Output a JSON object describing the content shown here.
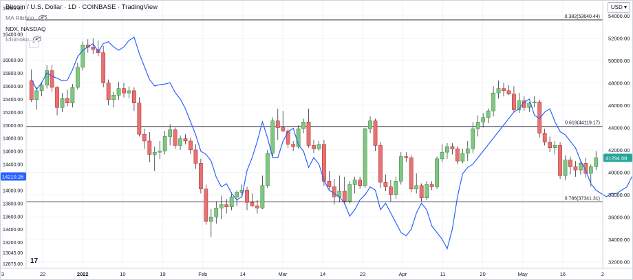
{
  "legend": {
    "title": "Bitcoin / U.S. Dollar · 1D · COINBASE · TradingView",
    "items": [
      "MA Ribbon",
      "NDX, NASDAQ",
      "Ichimoku"
    ]
  },
  "currency": "USD",
  "tv_logo": "17",
  "chart_data": {
    "type": "candlestick+line",
    "x_tick_labels": [
      "3",
      "22",
      "2022",
      "10",
      "19",
      "Feb",
      "14",
      "Mar",
      "14",
      "23",
      "Apr",
      "11",
      "20",
      "May",
      "16",
      "2"
    ],
    "right_axis": {
      "label": "USD",
      "ticks": [
        32000,
        34000,
        36000,
        38000,
        40000,
        42000,
        44000,
        46000,
        48000,
        50000,
        52000,
        54000
      ],
      "range": [
        31400,
        55300
      ]
    },
    "left_axis": {
      "label": "NDX",
      "ticks": [
        12875,
        13045,
        13200,
        13400,
        13600,
        13800,
        14000,
        14200,
        14400,
        14600,
        14800,
        15000,
        15200,
        15400,
        15600,
        15800,
        16000,
        16400,
        16800
      ],
      "range": [
        12800,
        16900
      ]
    },
    "fib_levels": [
      {
        "label": "0.382(53640.44)",
        "value": 53640.44
      },
      {
        "label": "0.618(44119.17)",
        "value": 44119.17
      },
      {
        "label": "0.786(37341.31)",
        "value": 37341.31
      }
    ],
    "last_price": {
      "value": "41294.68",
      "color": "#26a69a"
    },
    "ndx_last": {
      "value": "14210.26",
      "color": "#2962ff"
    },
    "colors": {
      "up": "#26a69a",
      "up_fill": "#81c784",
      "down": "#ef5350",
      "down_fill": "#e57373",
      "ndx": "#2962ff",
      "fib": "#131722",
      "grid": "#f0f3fa"
    },
    "btc_candles": [
      {
        "o": 48200,
        "h": 49200,
        "l": 46300,
        "c": 46500
      },
      {
        "o": 46500,
        "h": 47600,
        "l": 45600,
        "c": 47300
      },
      {
        "o": 47300,
        "h": 48100,
        "l": 46800,
        "c": 47800
      },
      {
        "o": 47800,
        "h": 49600,
        "l": 47500,
        "c": 49100
      },
      {
        "o": 49100,
        "h": 49600,
        "l": 47200,
        "c": 47600
      },
      {
        "o": 47600,
        "h": 47700,
        "l": 45100,
        "c": 45800
      },
      {
        "o": 45800,
        "h": 47100,
        "l": 45400,
        "c": 46600
      },
      {
        "o": 46600,
        "h": 47400,
        "l": 45900,
        "c": 46200
      },
      {
        "o": 46200,
        "h": 47900,
        "l": 45800,
        "c": 47600
      },
      {
        "o": 47600,
        "h": 49800,
        "l": 47400,
        "c": 49400
      },
      {
        "o": 49400,
        "h": 51700,
        "l": 49100,
        "c": 51400
      },
      {
        "o": 51400,
        "h": 51900,
        "l": 50700,
        "c": 51200
      },
      {
        "o": 51200,
        "h": 52000,
        "l": 50600,
        "c": 51000
      },
      {
        "o": 51000,
        "h": 51800,
        "l": 50400,
        "c": 50700
      },
      {
        "o": 50700,
        "h": 51300,
        "l": 47600,
        "c": 48000
      },
      {
        "o": 48000,
        "h": 48300,
        "l": 46000,
        "c": 46500
      },
      {
        "o": 46500,
        "h": 47200,
        "l": 45800,
        "c": 46900
      },
      {
        "o": 46900,
        "h": 48100,
        "l": 46500,
        "c": 47500
      },
      {
        "o": 47500,
        "h": 48000,
        "l": 46700,
        "c": 47100
      },
      {
        "o": 47100,
        "h": 47700,
        "l": 46600,
        "c": 47300
      },
      {
        "o": 47300,
        "h": 47600,
        "l": 45500,
        "c": 46200
      },
      {
        "o": 46200,
        "h": 46700,
        "l": 43200,
        "c": 43400
      },
      {
        "o": 43400,
        "h": 43900,
        "l": 42100,
        "c": 42800
      },
      {
        "o": 42800,
        "h": 43600,
        "l": 40900,
        "c": 41600
      },
      {
        "o": 41600,
        "h": 42300,
        "l": 40100,
        "c": 41800
      },
      {
        "o": 41800,
        "h": 42800,
        "l": 41200,
        "c": 41900
      },
      {
        "o": 41900,
        "h": 43700,
        "l": 41600,
        "c": 43200
      },
      {
        "o": 43200,
        "h": 44300,
        "l": 42400,
        "c": 43800
      },
      {
        "o": 43800,
        "h": 44000,
        "l": 42100,
        "c": 42400
      },
      {
        "o": 42400,
        "h": 43300,
        "l": 42000,
        "c": 43000
      },
      {
        "o": 43000,
        "h": 43400,
        "l": 42500,
        "c": 42800
      },
      {
        "o": 42800,
        "h": 43100,
        "l": 41600,
        "c": 42000
      },
      {
        "o": 42000,
        "h": 42500,
        "l": 40300,
        "c": 40800
      },
      {
        "o": 40800,
        "h": 41200,
        "l": 38100,
        "c": 38500
      },
      {
        "o": 38500,
        "h": 38900,
        "l": 35300,
        "c": 35600
      },
      {
        "o": 35600,
        "h": 36700,
        "l": 34200,
        "c": 36000
      },
      {
        "o": 36000,
        "h": 37400,
        "l": 35400,
        "c": 36800
      },
      {
        "o": 36800,
        "h": 37900,
        "l": 35800,
        "c": 37100
      },
      {
        "o": 37100,
        "h": 37600,
        "l": 36300,
        "c": 36900
      },
      {
        "o": 36900,
        "h": 38200,
        "l": 36600,
        "c": 37800
      },
      {
        "o": 37800,
        "h": 38400,
        "l": 37000,
        "c": 38200
      },
      {
        "o": 38200,
        "h": 38900,
        "l": 37800,
        "c": 38400
      },
      {
        "o": 38400,
        "h": 38700,
        "l": 36600,
        "c": 37300
      },
      {
        "o": 37300,
        "h": 38100,
        "l": 36900,
        "c": 37000
      },
      {
        "o": 37000,
        "h": 37500,
        "l": 36300,
        "c": 36800
      },
      {
        "o": 36800,
        "h": 39700,
        "l": 36700,
        "c": 38800
      },
      {
        "o": 38800,
        "h": 42000,
        "l": 38600,
        "c": 41700
      },
      {
        "o": 41700,
        "h": 44900,
        "l": 41400,
        "c": 44600
      },
      {
        "o": 44600,
        "h": 45700,
        "l": 42900,
        "c": 44000
      },
      {
        "o": 44000,
        "h": 45500,
        "l": 43600,
        "c": 43700
      },
      {
        "o": 43700,
        "h": 43900,
        "l": 42200,
        "c": 42500
      },
      {
        "o": 42500,
        "h": 42800,
        "l": 41900,
        "c": 42300
      },
      {
        "o": 42300,
        "h": 44200,
        "l": 42100,
        "c": 43900
      },
      {
        "o": 43900,
        "h": 44800,
        "l": 43500,
        "c": 44500
      },
      {
        "o": 44500,
        "h": 45700,
        "l": 42200,
        "c": 42400
      },
      {
        "o": 42400,
        "h": 42900,
        "l": 41700,
        "c": 42100
      },
      {
        "o": 42100,
        "h": 42800,
        "l": 41900,
        "c": 42500
      },
      {
        "o": 42500,
        "h": 42900,
        "l": 38800,
        "c": 39200
      },
      {
        "o": 39200,
        "h": 40100,
        "l": 38400,
        "c": 38700
      },
      {
        "o": 38700,
        "h": 39400,
        "l": 37100,
        "c": 37800
      },
      {
        "o": 37800,
        "h": 39700,
        "l": 37300,
        "c": 38300
      },
      {
        "o": 38300,
        "h": 39600,
        "l": 37100,
        "c": 37400
      },
      {
        "o": 37400,
        "h": 39200,
        "l": 37200,
        "c": 38900
      },
      {
        "o": 38900,
        "h": 39600,
        "l": 38100,
        "c": 39300
      },
      {
        "o": 39300,
        "h": 39600,
        "l": 38500,
        "c": 38800
      },
      {
        "o": 38800,
        "h": 44000,
        "l": 38600,
        "c": 43900
      },
      {
        "o": 43900,
        "h": 45000,
        "l": 43500,
        "c": 44600
      },
      {
        "o": 44600,
        "h": 44800,
        "l": 41900,
        "c": 42400
      },
      {
        "o": 42400,
        "h": 42700,
        "l": 38600,
        "c": 39100
      },
      {
        "o": 39100,
        "h": 39800,
        "l": 38300,
        "c": 38700
      },
      {
        "o": 38700,
        "h": 39300,
        "l": 37400,
        "c": 38000
      },
      {
        "o": 38000,
        "h": 39600,
        "l": 37600,
        "c": 39200
      },
      {
        "o": 39200,
        "h": 41800,
        "l": 38900,
        "c": 41400
      },
      {
        "o": 41400,
        "h": 41800,
        "l": 40900,
        "c": 41300
      },
      {
        "o": 41300,
        "h": 41500,
        "l": 38200,
        "c": 38500
      },
      {
        "o": 38500,
        "h": 39900,
        "l": 38100,
        "c": 38800
      },
      {
        "o": 38800,
        "h": 39000,
        "l": 37400,
        "c": 37700
      },
      {
        "o": 37700,
        "h": 39200,
        "l": 37500,
        "c": 38900
      },
      {
        "o": 38900,
        "h": 39200,
        "l": 38400,
        "c": 38700
      },
      {
        "o": 38700,
        "h": 41400,
        "l": 38500,
        "c": 41200
      },
      {
        "o": 41200,
        "h": 42500,
        "l": 40900,
        "c": 41800
      },
      {
        "o": 41800,
        "h": 42600,
        "l": 41200,
        "c": 42300
      },
      {
        "o": 42300,
        "h": 42600,
        "l": 41600,
        "c": 42100
      },
      {
        "o": 42100,
        "h": 42300,
        "l": 40700,
        "c": 41000
      },
      {
        "o": 41000,
        "h": 42100,
        "l": 40800,
        "c": 41700
      },
      {
        "o": 41700,
        "h": 42800,
        "l": 41000,
        "c": 42100
      },
      {
        "o": 42100,
        "h": 44500,
        "l": 41700,
        "c": 43900
      },
      {
        "o": 43900,
        "h": 45100,
        "l": 43200,
        "c": 44500
      },
      {
        "o": 44500,
        "h": 45300,
        "l": 44000,
        "c": 44900
      },
      {
        "o": 44900,
        "h": 45700,
        "l": 44400,
        "c": 45500
      },
      {
        "o": 45500,
        "h": 47700,
        "l": 45000,
        "c": 47100
      },
      {
        "o": 47100,
        "h": 48200,
        "l": 46600,
        "c": 47500
      },
      {
        "o": 47500,
        "h": 48000,
        "l": 46800,
        "c": 47300
      },
      {
        "o": 47300,
        "h": 47800,
        "l": 46900,
        "c": 47000
      },
      {
        "o": 47000,
        "h": 47700,
        "l": 45400,
        "c": 45600
      },
      {
        "o": 45600,
        "h": 47100,
        "l": 45300,
        "c": 46400
      },
      {
        "o": 46400,
        "h": 46800,
        "l": 45500,
        "c": 45800
      },
      {
        "o": 45800,
        "h": 46300,
        "l": 45400,
        "c": 46200
      },
      {
        "o": 46200,
        "h": 46800,
        "l": 45800,
        "c": 46300
      },
      {
        "o": 46300,
        "h": 46500,
        "l": 43100,
        "c": 43500
      },
      {
        "o": 43500,
        "h": 43900,
        "l": 42400,
        "c": 42700
      },
      {
        "o": 42700,
        "h": 43200,
        "l": 41800,
        "c": 42200
      },
      {
        "o": 42200,
        "h": 42800,
        "l": 41600,
        "c": 42400
      },
      {
        "o": 42400,
        "h": 42700,
        "l": 39400,
        "c": 39700
      },
      {
        "o": 39700,
        "h": 41500,
        "l": 39300,
        "c": 41100
      },
      {
        "o": 41100,
        "h": 41400,
        "l": 39800,
        "c": 40500
      },
      {
        "o": 40500,
        "h": 41000,
        "l": 39600,
        "c": 40200
      },
      {
        "o": 40200,
        "h": 41100,
        "l": 39800,
        "c": 40800
      },
      {
        "o": 40800,
        "h": 41300,
        "l": 39500,
        "c": 39900
      },
      {
        "o": 39900,
        "h": 40700,
        "l": 38700,
        "c": 40500
      },
      {
        "o": 40500,
        "h": 41900,
        "l": 40200,
        "c": 41300
      }
    ],
    "ndx_line": [
      15700,
      15550,
      15650,
      15800,
      15750,
      15720,
      15680,
      15690,
      15850,
      16050,
      16150,
      16200,
      16250,
      16130,
      16250,
      16280,
      16200,
      16150,
      16200,
      16300,
      16350,
      16100,
      15900,
      15700,
      15600,
      15620,
      15630,
      15650,
      15500,
      15400,
      15250,
      15050,
      14850,
      14600,
      14550,
      14450,
      14200,
      14050,
      14100,
      13950,
      13850,
      13900,
      14300,
      14500,
      14750,
      15050,
      14800,
      14500,
      14500,
      14750,
      14900,
      14950,
      14700,
      14600,
      14350,
      14500,
      14400,
      14150,
      14000,
      13950,
      13900,
      13800,
      13600,
      13700,
      13850,
      13930,
      14050,
      14000,
      13700,
      13800,
      13650,
      13500,
      13350,
      13300,
      13400,
      13650,
      13800,
      13700,
      13450,
      13350,
      13250,
      13100,
      13400,
      13900,
      14250,
      14350,
      14400,
      14500,
      14600,
      14700,
      14800,
      14900,
      15000,
      15100,
      15200,
      15250,
      15350,
      15400,
      15150,
      15100,
      15200,
      15250,
      15050,
      14900,
      14850,
      14750,
      14650,
      14450,
      14300,
      14100,
      14000,
      13950,
      13900,
      13950,
      13950,
      14000,
      14050,
      14210
    ]
  }
}
